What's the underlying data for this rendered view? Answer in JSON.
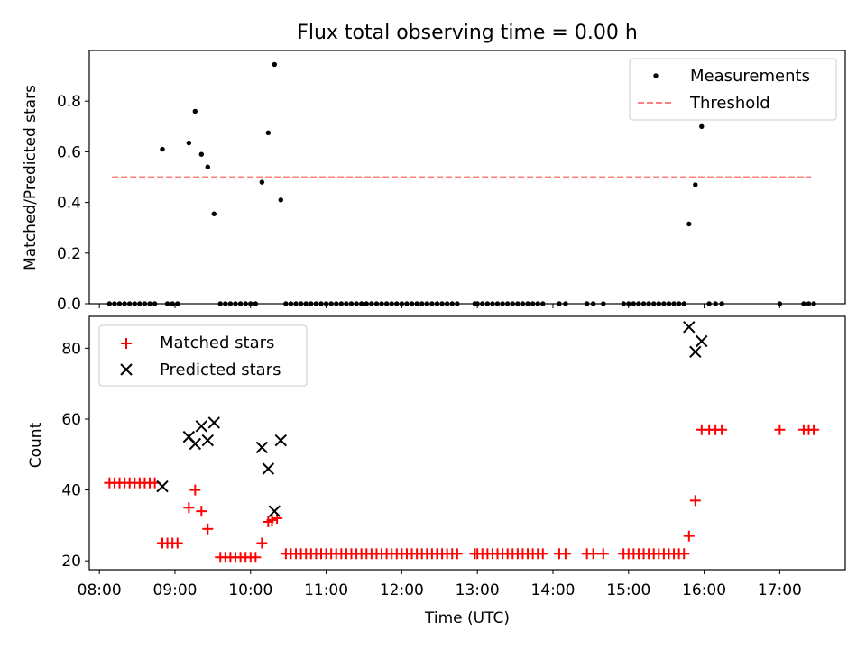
{
  "chart_data": [
    {
      "type": "scatter",
      "title": "Flux total observing time = 0.00 h",
      "xlabel": "",
      "ylabel": "Matched/Predicted stars",
      "xlim": [
        "07:52",
        "17:52"
      ],
      "ylim": [
        0,
        1.0
      ],
      "xticks": [
        "08:00",
        "09:00",
        "10:00",
        "11:00",
        "12:00",
        "13:00",
        "14:00",
        "15:00",
        "16:00",
        "17:00"
      ],
      "yticks": [
        "0.0",
        "0.2",
        "0.4",
        "0.6",
        "0.8"
      ],
      "legend": {
        "position": "top-right",
        "entries": [
          "Measurements",
          "Threshold"
        ]
      },
      "threshold": {
        "name": "Threshold",
        "y": 0.5,
        "x_start": "08:10",
        "x_end": "17:25",
        "color": "#ff7f7f",
        "style": "dashed"
      },
      "series": [
        {
          "name": "Measurements",
          "marker": "dot",
          "color": "#000000",
          "points": [
            [
              "08:08",
              0.0
            ],
            [
              "08:12",
              0.0
            ],
            [
              "08:16",
              0.0
            ],
            [
              "08:20",
              0.0
            ],
            [
              "08:24",
              0.0
            ],
            [
              "08:28",
              0.0
            ],
            [
              "08:32",
              0.0
            ],
            [
              "08:36",
              0.0
            ],
            [
              "08:40",
              0.0
            ],
            [
              "08:44",
              0.0
            ],
            [
              "08:50",
              0.61
            ],
            [
              "08:54",
              0.0
            ],
            [
              "08:58",
              0.0
            ],
            [
              "09:02",
              0.0
            ],
            [
              "09:11",
              0.635
            ],
            [
              "09:16",
              0.76
            ],
            [
              "09:21",
              0.59
            ],
            [
              "09:26",
              0.54
            ],
            [
              "09:31",
              0.355
            ],
            [
              "09:36",
              0.0
            ],
            [
              "09:40",
              0.0
            ],
            [
              "09:44",
              0.0
            ],
            [
              "09:48",
              0.0
            ],
            [
              "09:52",
              0.0
            ],
            [
              "09:56",
              0.0
            ],
            [
              "10:00",
              0.0
            ],
            [
              "10:04",
              0.0
            ],
            [
              "10:09",
              0.48
            ],
            [
              "10:14",
              0.675
            ],
            [
              "10:19",
              0.945
            ],
            [
              "10:24",
              0.41
            ],
            [
              "10:28",
              0.0
            ],
            [
              "10:32",
              0.0
            ],
            [
              "10:36",
              0.0
            ],
            [
              "10:40",
              0.0
            ],
            [
              "10:44",
              0.0
            ],
            [
              "10:48",
              0.0
            ],
            [
              "10:52",
              0.0
            ],
            [
              "10:56",
              0.0
            ],
            [
              "11:00",
              0.0
            ],
            [
              "11:04",
              0.0
            ],
            [
              "11:08",
              0.0
            ],
            [
              "11:12",
              0.0
            ],
            [
              "11:16",
              0.0
            ],
            [
              "11:20",
              0.0
            ],
            [
              "11:24",
              0.0
            ],
            [
              "11:28",
              0.0
            ],
            [
              "11:32",
              0.0
            ],
            [
              "11:36",
              0.0
            ],
            [
              "11:40",
              0.0
            ],
            [
              "11:44",
              0.0
            ],
            [
              "11:48",
              0.0
            ],
            [
              "11:52",
              0.0
            ],
            [
              "11:56",
              0.0
            ],
            [
              "12:00",
              0.0
            ],
            [
              "12:04",
              0.0
            ],
            [
              "12:08",
              0.0
            ],
            [
              "12:12",
              0.0
            ],
            [
              "12:16",
              0.0
            ],
            [
              "12:20",
              0.0
            ],
            [
              "12:24",
              0.0
            ],
            [
              "12:28",
              0.0
            ],
            [
              "12:32",
              0.0
            ],
            [
              "12:36",
              0.0
            ],
            [
              "12:40",
              0.0
            ],
            [
              "12:44",
              0.0
            ],
            [
              "12:58",
              0.0
            ],
            [
              "13:00",
              0.0
            ],
            [
              "13:04",
              0.0
            ],
            [
              "13:08",
              0.0
            ],
            [
              "13:12",
              0.0
            ],
            [
              "13:16",
              0.0
            ],
            [
              "13:20",
              0.0
            ],
            [
              "13:24",
              0.0
            ],
            [
              "13:28",
              0.0
            ],
            [
              "13:32",
              0.0
            ],
            [
              "13:36",
              0.0
            ],
            [
              "13:40",
              0.0
            ],
            [
              "13:44",
              0.0
            ],
            [
              "13:48",
              0.0
            ],
            [
              "13:52",
              0.0
            ],
            [
              "14:05",
              0.0
            ],
            [
              "14:10",
              0.0
            ],
            [
              "14:27",
              0.0
            ],
            [
              "14:32",
              0.0
            ],
            [
              "14:40",
              0.0
            ],
            [
              "14:56",
              0.0
            ],
            [
              "15:00",
              0.0
            ],
            [
              "15:04",
              0.0
            ],
            [
              "15:08",
              0.0
            ],
            [
              "15:12",
              0.0
            ],
            [
              "15:16",
              0.0
            ],
            [
              "15:20",
              0.0
            ],
            [
              "15:24",
              0.0
            ],
            [
              "15:28",
              0.0
            ],
            [
              "15:32",
              0.0
            ],
            [
              "15:36",
              0.0
            ],
            [
              "15:40",
              0.0
            ],
            [
              "15:44",
              0.0
            ],
            [
              "15:48",
              0.315
            ],
            [
              "15:53",
              0.47
            ],
            [
              "15:58",
              0.7
            ],
            [
              "16:04",
              0.0
            ],
            [
              "16:09",
              0.0
            ],
            [
              "16:14",
              0.0
            ],
            [
              "17:00",
              0.0
            ],
            [
              "17:19",
              0.0
            ],
            [
              "17:23",
              0.0
            ],
            [
              "17:27",
              0.0
            ]
          ]
        }
      ]
    },
    {
      "type": "scatter",
      "title": "",
      "xlabel": "Time (UTC)",
      "ylabel": "Count",
      "xlim": [
        "07:52",
        "17:52"
      ],
      "ylim": [
        17.5,
        89
      ],
      "xticks": [
        "08:00",
        "09:00",
        "10:00",
        "11:00",
        "12:00",
        "13:00",
        "14:00",
        "15:00",
        "16:00",
        "17:00"
      ],
      "yticks": [
        "20",
        "40",
        "60",
        "80"
      ],
      "legend": {
        "position": "top-left",
        "entries": [
          "Matched stars",
          "Predicted stars"
        ]
      },
      "series": [
        {
          "name": "Matched stars",
          "marker": "plus",
          "color": "#ff0000",
          "points": [
            [
              "08:08",
              42
            ],
            [
              "08:12",
              42
            ],
            [
              "08:16",
              42
            ],
            [
              "08:20",
              42
            ],
            [
              "08:24",
              42
            ],
            [
              "08:28",
              42
            ],
            [
              "08:32",
              42
            ],
            [
              "08:36",
              42
            ],
            [
              "08:40",
              42
            ],
            [
              "08:44",
              42
            ],
            [
              "08:50",
              25
            ],
            [
              "08:54",
              25
            ],
            [
              "08:58",
              25
            ],
            [
              "09:02",
              25
            ],
            [
              "09:11",
              35
            ],
            [
              "09:16",
              40
            ],
            [
              "09:21",
              34
            ],
            [
              "09:26",
              29
            ],
            [
              "09:36",
              21
            ],
            [
              "09:40",
              21
            ],
            [
              "09:44",
              21
            ],
            [
              "09:48",
              21
            ],
            [
              "09:52",
              21
            ],
            [
              "09:56",
              21
            ],
            [
              "10:00",
              21
            ],
            [
              "10:04",
              21
            ],
            [
              "10:09",
              25
            ],
            [
              "10:14",
              31
            ],
            [
              "10:17",
              31.5
            ],
            [
              "10:21",
              32
            ],
            [
              "10:28",
              22
            ],
            [
              "10:32",
              22
            ],
            [
              "10:36",
              22
            ],
            [
              "10:40",
              22
            ],
            [
              "10:44",
              22
            ],
            [
              "10:48",
              22
            ],
            [
              "10:52",
              22
            ],
            [
              "10:56",
              22
            ],
            [
              "11:00",
              22
            ],
            [
              "11:04",
              22
            ],
            [
              "11:08",
              22
            ],
            [
              "11:12",
              22
            ],
            [
              "11:16",
              22
            ],
            [
              "11:20",
              22
            ],
            [
              "11:24",
              22
            ],
            [
              "11:28",
              22
            ],
            [
              "11:32",
              22
            ],
            [
              "11:36",
              22
            ],
            [
              "11:40",
              22
            ],
            [
              "11:44",
              22
            ],
            [
              "11:48",
              22
            ],
            [
              "11:52",
              22
            ],
            [
              "11:56",
              22
            ],
            [
              "12:00",
              22
            ],
            [
              "12:04",
              22
            ],
            [
              "12:08",
              22
            ],
            [
              "12:12",
              22
            ],
            [
              "12:16",
              22
            ],
            [
              "12:20",
              22
            ],
            [
              "12:24",
              22
            ],
            [
              "12:28",
              22
            ],
            [
              "12:32",
              22
            ],
            [
              "12:36",
              22
            ],
            [
              "12:40",
              22
            ],
            [
              "12:44",
              22
            ],
            [
              "12:58",
              22
            ],
            [
              "13:00",
              22
            ],
            [
              "13:04",
              22
            ],
            [
              "13:08",
              22
            ],
            [
              "13:12",
              22
            ],
            [
              "13:16",
              22
            ],
            [
              "13:20",
              22
            ],
            [
              "13:24",
              22
            ],
            [
              "13:28",
              22
            ],
            [
              "13:32",
              22
            ],
            [
              "13:36",
              22
            ],
            [
              "13:40",
              22
            ],
            [
              "13:44",
              22
            ],
            [
              "13:48",
              22
            ],
            [
              "13:52",
              22
            ],
            [
              "14:05",
              22
            ],
            [
              "14:10",
              22
            ],
            [
              "14:27",
              22
            ],
            [
              "14:32",
              22
            ],
            [
              "14:40",
              22
            ],
            [
              "14:56",
              22
            ],
            [
              "15:00",
              22
            ],
            [
              "15:04",
              22
            ],
            [
              "15:08",
              22
            ],
            [
              "15:12",
              22
            ],
            [
              "15:16",
              22
            ],
            [
              "15:20",
              22
            ],
            [
              "15:24",
              22
            ],
            [
              "15:28",
              22
            ],
            [
              "15:32",
              22
            ],
            [
              "15:36",
              22
            ],
            [
              "15:40",
              22
            ],
            [
              "15:44",
              22
            ],
            [
              "15:48",
              27
            ],
            [
              "15:53",
              37
            ],
            [
              "15:58",
              57
            ],
            [
              "16:04",
              57
            ],
            [
              "16:09",
              57
            ],
            [
              "16:14",
              57
            ],
            [
              "17:00",
              57
            ],
            [
              "17:19",
              57
            ],
            [
              "17:23",
              57
            ],
            [
              "17:27",
              57
            ]
          ]
        },
        {
          "name": "Predicted stars",
          "marker": "x",
          "color": "#000000",
          "points": [
            [
              "08:50",
              41
            ],
            [
              "09:11",
              55
            ],
            [
              "09:16",
              53
            ],
            [
              "09:21",
              58
            ],
            [
              "09:26",
              54
            ],
            [
              "09:31",
              59
            ],
            [
              "10:09",
              52
            ],
            [
              "10:14",
              46
            ],
            [
              "10:19",
              34
            ],
            [
              "10:24",
              54
            ],
            [
              "15:48",
              86
            ],
            [
              "15:53",
              79
            ],
            [
              "15:58",
              82
            ]
          ]
        }
      ]
    }
  ]
}
